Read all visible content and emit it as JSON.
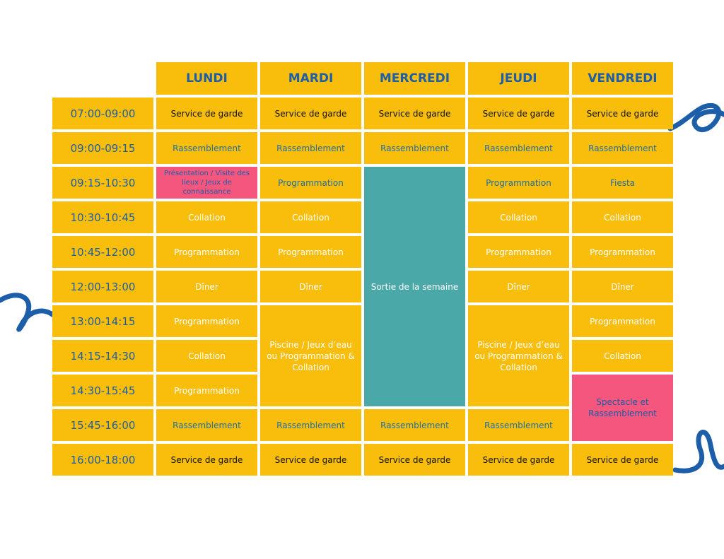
{
  "days": [
    "LUNDI",
    "MARDI",
    "MERCREDI",
    "JEUDI",
    "VENDREDI"
  ],
  "rows": [
    {
      "time": "07:00-09:00",
      "cells": [
        "Service de garde",
        "Service de garde",
        "Service de garde",
        "Service de garde",
        "Service de garde"
      ]
    },
    {
      "time": "09:00-09:15",
      "cells": [
        "Rassemblement",
        "Rassemblement",
        "Rassemblement",
        "Rassemblement",
        "Rassemblement"
      ]
    },
    {
      "time": "09:15-10:30",
      "cells": [
        "Présentation / Visite des lieux / Jeux de connaissance",
        "Programmation",
        "Sortie de la semaine",
        "Programmation",
        "Fiesta"
      ]
    },
    {
      "time": "10:30-10:45",
      "cells": [
        "Collation",
        "Collation",
        "Collation",
        "Collation"
      ]
    },
    {
      "time": "10:45-12:00",
      "cells": [
        "Programmation",
        "Programmation",
        "Programmation",
        "Programmation"
      ]
    },
    {
      "time": "12:00-13:00",
      "cells": [
        "Dîner",
        "Dîner",
        "Dîner",
        "Dîner"
      ]
    },
    {
      "time": "13:00-14:15",
      "cells": [
        "Programmation",
        "Piscine / Jeux d’eau ou Programmation & Collation",
        "Piscine / Jeux d’eau ou Programmation & Collation",
        "Programmation"
      ]
    },
    {
      "time": "14:15-14:30",
      "cells": [
        "Collation",
        "Collation"
      ]
    },
    {
      "time": "14:30-15:45",
      "cells": [
        "Programmation",
        "Spectacle et Rassemblement"
      ]
    },
    {
      "time": "15:45-16:00",
      "cells": [
        "Rassemblement",
        "Rassemblement",
        "Rassemblement",
        "Rassemblement"
      ]
    },
    {
      "time": "16:00-18:00",
      "cells": [
        "Service de garde",
        "Service de garde",
        "Service de garde",
        "Service de garde",
        "Service de garde"
      ]
    }
  ]
}
